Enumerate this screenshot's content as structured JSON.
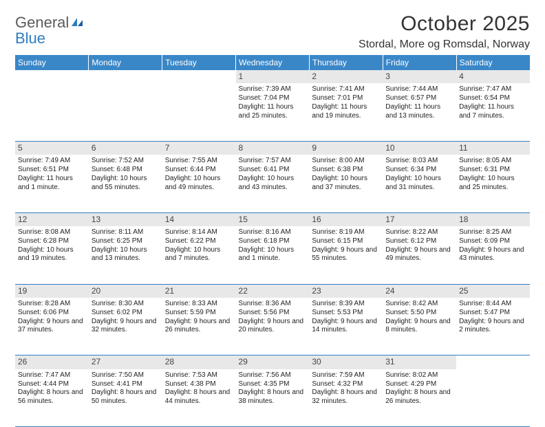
{
  "brand": {
    "gray": "General",
    "blue": "Blue"
  },
  "title": "October 2025",
  "location": "Stordal, More og Romsdal, Norway",
  "colors": {
    "header_bg": "#3a87c8",
    "header_text": "#ffffff",
    "daynum_bg": "#e8e8e8",
    "rule": "#2f7dc0",
    "logo_gray": "#5a5a5a",
    "logo_blue": "#2f7dc0"
  },
  "weekdays": [
    "Sunday",
    "Monday",
    "Tuesday",
    "Wednesday",
    "Thursday",
    "Friday",
    "Saturday"
  ],
  "weeks": [
    {
      "nums": [
        "",
        "",
        "",
        "1",
        "2",
        "3",
        "4"
      ],
      "cells": [
        null,
        null,
        null,
        {
          "sunrise": "7:39 AM",
          "sunset": "7:04 PM",
          "daylight": "11 hours and 25 minutes."
        },
        {
          "sunrise": "7:41 AM",
          "sunset": "7:01 PM",
          "daylight": "11 hours and 19 minutes."
        },
        {
          "sunrise": "7:44 AM",
          "sunset": "6:57 PM",
          "daylight": "11 hours and 13 minutes."
        },
        {
          "sunrise": "7:47 AM",
          "sunset": "6:54 PM",
          "daylight": "11 hours and 7 minutes."
        }
      ]
    },
    {
      "nums": [
        "5",
        "6",
        "7",
        "8",
        "9",
        "10",
        "11"
      ],
      "cells": [
        {
          "sunrise": "7:49 AM",
          "sunset": "6:51 PM",
          "daylight": "11 hours and 1 minute."
        },
        {
          "sunrise": "7:52 AM",
          "sunset": "6:48 PM",
          "daylight": "10 hours and 55 minutes."
        },
        {
          "sunrise": "7:55 AM",
          "sunset": "6:44 PM",
          "daylight": "10 hours and 49 minutes."
        },
        {
          "sunrise": "7:57 AM",
          "sunset": "6:41 PM",
          "daylight": "10 hours and 43 minutes."
        },
        {
          "sunrise": "8:00 AM",
          "sunset": "6:38 PM",
          "daylight": "10 hours and 37 minutes."
        },
        {
          "sunrise": "8:03 AM",
          "sunset": "6:34 PM",
          "daylight": "10 hours and 31 minutes."
        },
        {
          "sunrise": "8:05 AM",
          "sunset": "6:31 PM",
          "daylight": "10 hours and 25 minutes."
        }
      ]
    },
    {
      "nums": [
        "12",
        "13",
        "14",
        "15",
        "16",
        "17",
        "18"
      ],
      "cells": [
        {
          "sunrise": "8:08 AM",
          "sunset": "6:28 PM",
          "daylight": "10 hours and 19 minutes."
        },
        {
          "sunrise": "8:11 AM",
          "sunset": "6:25 PM",
          "daylight": "10 hours and 13 minutes."
        },
        {
          "sunrise": "8:14 AM",
          "sunset": "6:22 PM",
          "daylight": "10 hours and 7 minutes."
        },
        {
          "sunrise": "8:16 AM",
          "sunset": "6:18 PM",
          "daylight": "10 hours and 1 minute."
        },
        {
          "sunrise": "8:19 AM",
          "sunset": "6:15 PM",
          "daylight": "9 hours and 55 minutes."
        },
        {
          "sunrise": "8:22 AM",
          "sunset": "6:12 PM",
          "daylight": "9 hours and 49 minutes."
        },
        {
          "sunrise": "8:25 AM",
          "sunset": "6:09 PM",
          "daylight": "9 hours and 43 minutes."
        }
      ]
    },
    {
      "nums": [
        "19",
        "20",
        "21",
        "22",
        "23",
        "24",
        "25"
      ],
      "cells": [
        {
          "sunrise": "8:28 AM",
          "sunset": "6:06 PM",
          "daylight": "9 hours and 37 minutes."
        },
        {
          "sunrise": "8:30 AM",
          "sunset": "6:02 PM",
          "daylight": "9 hours and 32 minutes."
        },
        {
          "sunrise": "8:33 AM",
          "sunset": "5:59 PM",
          "daylight": "9 hours and 26 minutes."
        },
        {
          "sunrise": "8:36 AM",
          "sunset": "5:56 PM",
          "daylight": "9 hours and 20 minutes."
        },
        {
          "sunrise": "8:39 AM",
          "sunset": "5:53 PM",
          "daylight": "9 hours and 14 minutes."
        },
        {
          "sunrise": "8:42 AM",
          "sunset": "5:50 PM",
          "daylight": "9 hours and 8 minutes."
        },
        {
          "sunrise": "8:44 AM",
          "sunset": "5:47 PM",
          "daylight": "9 hours and 2 minutes."
        }
      ]
    },
    {
      "nums": [
        "26",
        "27",
        "28",
        "29",
        "30",
        "31",
        ""
      ],
      "cells": [
        {
          "sunrise": "7:47 AM",
          "sunset": "4:44 PM",
          "daylight": "8 hours and 56 minutes."
        },
        {
          "sunrise": "7:50 AM",
          "sunset": "4:41 PM",
          "daylight": "8 hours and 50 minutes."
        },
        {
          "sunrise": "7:53 AM",
          "sunset": "4:38 PM",
          "daylight": "8 hours and 44 minutes."
        },
        {
          "sunrise": "7:56 AM",
          "sunset": "4:35 PM",
          "daylight": "8 hours and 38 minutes."
        },
        {
          "sunrise": "7:59 AM",
          "sunset": "4:32 PM",
          "daylight": "8 hours and 32 minutes."
        },
        {
          "sunrise": "8:02 AM",
          "sunset": "4:29 PM",
          "daylight": "8 hours and 26 minutes."
        },
        null
      ]
    }
  ],
  "labels": {
    "sunrise": "Sunrise: ",
    "sunset": "Sunset: ",
    "daylight": "Daylight: "
  }
}
